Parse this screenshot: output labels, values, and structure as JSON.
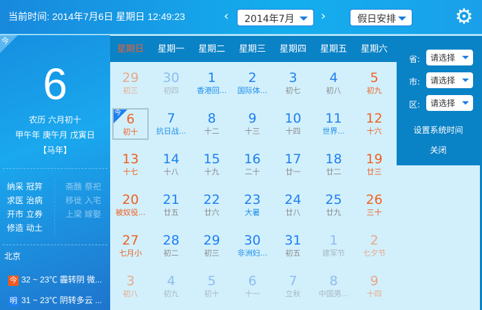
{
  "topbar": {
    "current_time": "当前时间: 2014年7月6日  星期日  12:49:23",
    "prev": "‹",
    "next": "›",
    "month_select": "2014年7月",
    "holiday_select": "假日安排",
    "settings_icon": "gear-icon"
  },
  "left": {
    "today_badge": "今",
    "day": "6",
    "lunar": "农历 六月初十",
    "ganzhi": "甲午年 庚午月 戊寅日",
    "zodiac": "【马年】",
    "yi": [
      "纳采 冠笄",
      "求医 治病",
      "开市 立券",
      "修造 动土"
    ],
    "ji": [
      "斋醮 祭祀",
      "移徙 入宅",
      "上梁 嫁娶"
    ],
    "city": "北京",
    "weather": [
      {
        "badge": "今",
        "badge_color": "#f05a1e",
        "text": "32 ~ 23℃ 霾转阴  微..."
      },
      {
        "badge": "明",
        "badge_color": "#1e7ff0",
        "text": "31 ~ 23℃ 阴转多云  ..."
      }
    ]
  },
  "weekdays": [
    "星期日",
    "星期一",
    "星期二",
    "星期三",
    "星期四",
    "星期五",
    "星期六"
  ],
  "days": [
    {
      "d": "29",
      "l": "初三",
      "o": 1
    },
    {
      "d": "30",
      "l": "初四",
      "o": 1
    },
    {
      "d": "1",
      "l": "香港回...",
      "f": 1
    },
    {
      "d": "2",
      "l": "国际体...",
      "f": 1
    },
    {
      "d": "3",
      "l": "初七"
    },
    {
      "d": "4",
      "l": "初八"
    },
    {
      "d": "5",
      "l": "初九"
    },
    {
      "d": "6",
      "l": "初十",
      "t": 1,
      "f": 1
    },
    {
      "d": "7",
      "l": "抗日战...",
      "f": 1
    },
    {
      "d": "8",
      "l": "十二"
    },
    {
      "d": "9",
      "l": "十三"
    },
    {
      "d": "10",
      "l": "十四"
    },
    {
      "d": "11",
      "l": "世界...",
      "f": 1
    },
    {
      "d": "12",
      "l": "十六"
    },
    {
      "d": "13",
      "l": "十七"
    },
    {
      "d": "14",
      "l": "十八"
    },
    {
      "d": "15",
      "l": "十九"
    },
    {
      "d": "16",
      "l": "二十"
    },
    {
      "d": "17",
      "l": "廿一"
    },
    {
      "d": "18",
      "l": "廿二"
    },
    {
      "d": "19",
      "l": "廿三"
    },
    {
      "d": "20",
      "l": "被奴役...",
      "f": 1
    },
    {
      "d": "21",
      "l": "廿五"
    },
    {
      "d": "22",
      "l": "廿六"
    },
    {
      "d": "23",
      "l": "大暑",
      "f": 1
    },
    {
      "d": "24",
      "l": "廿八"
    },
    {
      "d": "25",
      "l": "廿九"
    },
    {
      "d": "26",
      "l": "三十"
    },
    {
      "d": "27",
      "l": "七月小"
    },
    {
      "d": "28",
      "l": "初二"
    },
    {
      "d": "29",
      "l": "初三"
    },
    {
      "d": "30",
      "l": "非洲妇...",
      "f": 1
    },
    {
      "d": "31",
      "l": "初五"
    },
    {
      "d": "1",
      "l": "建军节",
      "o": 1,
      "f": 1
    },
    {
      "d": "2",
      "l": "七夕节",
      "o": 1
    },
    {
      "d": "3",
      "l": "初八",
      "o": 1
    },
    {
      "d": "4",
      "l": "初九",
      "o": 1
    },
    {
      "d": "5",
      "l": "初十",
      "o": 1
    },
    {
      "d": "6",
      "l": "十一",
      "o": 1
    },
    {
      "d": "7",
      "l": "立秋",
      "o": 1,
      "f": 1
    },
    {
      "d": "8",
      "l": "中国男...",
      "o": 1,
      "f": 1
    },
    {
      "d": "9",
      "l": "十四",
      "o": 1
    }
  ],
  "panel": {
    "province_label": "省:",
    "city_label": "市:",
    "district_label": "区:",
    "placeholder": "请选择",
    "set_time": "设置系统时间",
    "close": "关闭"
  }
}
